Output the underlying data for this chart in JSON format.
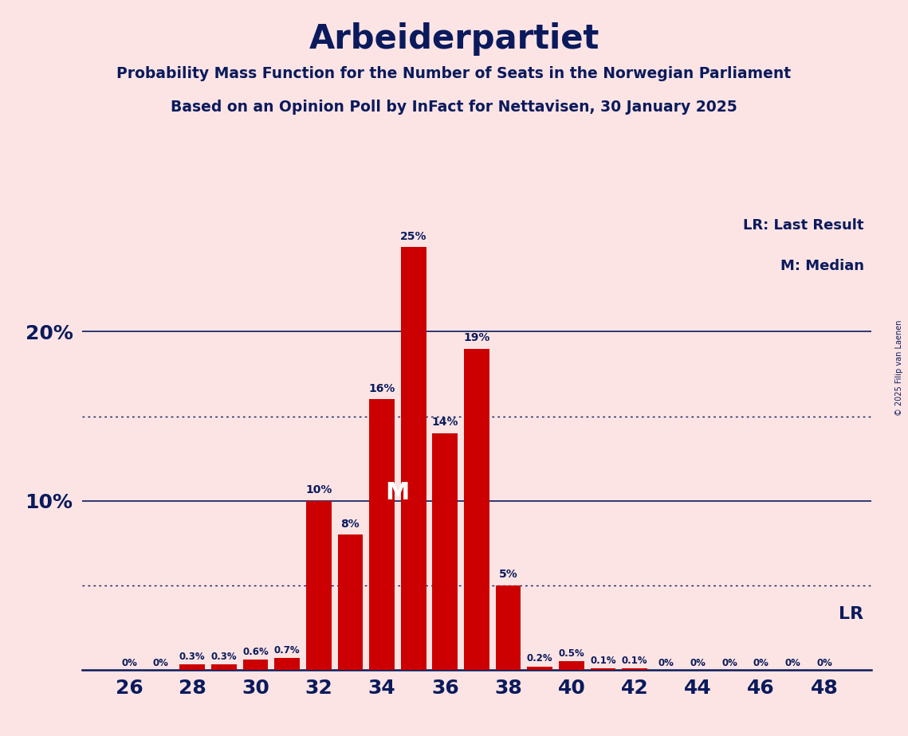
{
  "title": "Arbeiderpartiet",
  "subtitle1": "Probability Mass Function for the Number of Seats in the Norwegian Parliament",
  "subtitle2": "Based on an Opinion Poll by InFact for Nettavisen, 30 January 2025",
  "copyright": "© 2025 Filip van Laenen",
  "background_color": "#fce4e4",
  "bar_color": "#cc0000",
  "text_color": "#0a1a5c",
  "seats": [
    26,
    27,
    28,
    29,
    30,
    31,
    32,
    33,
    34,
    35,
    36,
    37,
    38,
    39,
    40,
    41,
    42,
    43,
    44,
    45,
    46,
    47,
    48
  ],
  "probabilities": [
    0.0,
    0.0,
    0.3,
    0.3,
    0.6,
    0.7,
    10.0,
    8.0,
    16.0,
    25.0,
    14.0,
    19.0,
    5.0,
    0.2,
    0.5,
    0.1,
    0.1,
    0.0,
    0.0,
    0.0,
    0.0,
    0.0,
    0.0
  ],
  "labels": [
    "0%",
    "0%",
    "0.3%",
    "0.3%",
    "0.6%",
    "0.7%",
    "10%",
    "8%",
    "16%",
    "25%",
    "14%",
    "19%",
    "5%",
    "0.2%",
    "0.5%",
    "0.1%",
    "0.1%",
    "0%",
    "0%",
    "0%",
    "0%",
    "0%",
    "0%"
  ],
  "median_seat": 35,
  "last_result_seat": 48,
  "xtick_seats": [
    26,
    28,
    30,
    32,
    34,
    36,
    38,
    40,
    42,
    44,
    46,
    48
  ],
  "solid_hlines": [
    10.0,
    20.0
  ],
  "dotted_hlines": [
    5.0,
    15.0
  ],
  "ylim": [
    0,
    27
  ],
  "legend_lr": "LR: Last Result",
  "legend_m": "M: Median",
  "legend_lr_short": "LR"
}
